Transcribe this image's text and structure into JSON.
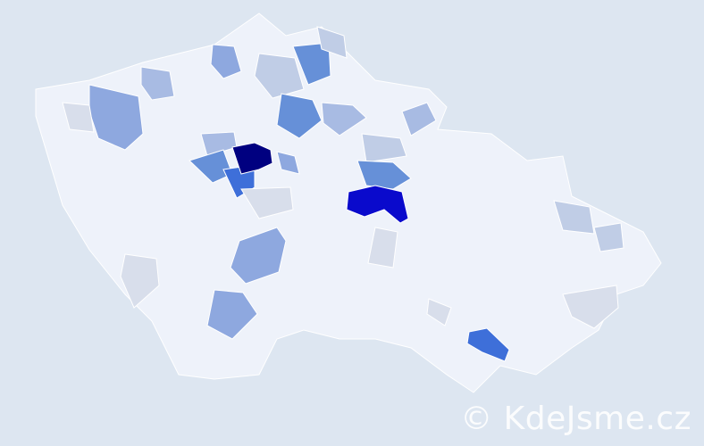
{
  "watermark": "© KdeJsme.cz",
  "colors": {
    "background": "#dde6f1",
    "base": "#eef2fa",
    "border": "#ffffff",
    "level1": "#d8deeb",
    "level2": "#c0cde6",
    "level3": "#a8bbe3",
    "level4": "#8ea8df",
    "level5": "#6690d8",
    "level6": "#3e6fd9",
    "level7": "#0a0acc",
    "level8": "#000080"
  },
  "legend": []
}
